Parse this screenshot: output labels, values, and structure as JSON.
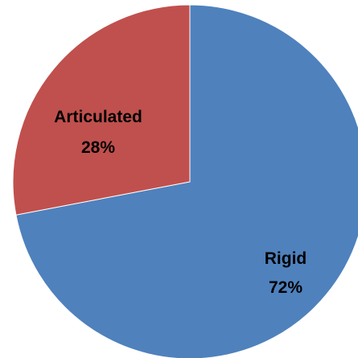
{
  "chart_data": {
    "type": "pie",
    "title": "",
    "categories": [
      "Rigid",
      "Articulated"
    ],
    "values": [
      72,
      28
    ],
    "data_labels": [
      "72%",
      "28%"
    ],
    "colors": [
      "#4F81BD",
      "#C0504D"
    ],
    "start": "12 o'clock",
    "direction": "clockwise",
    "legend": "none"
  }
}
